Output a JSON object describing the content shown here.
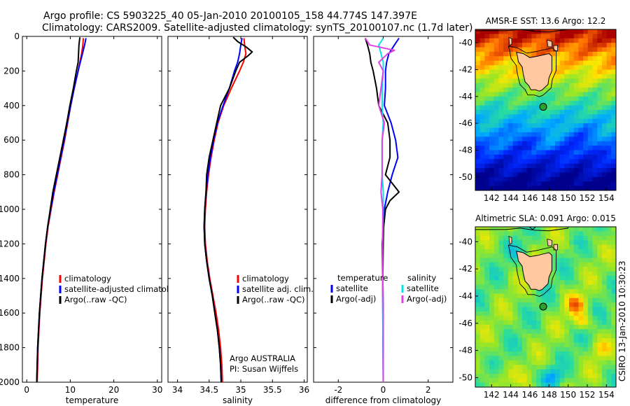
{
  "header": {
    "title_line1": "Argo profile: CS 5903225_40 05-Jan-2010 20100105_158 44.774S 147.397E",
    "title_line2": "Climatology: CARS2009. Satellite-adjusted climatology: synTS_20100107.nc (1.7d later)"
  },
  "side_label": "CSIRO 13-Jan-2010 10:30:23",
  "colors": {
    "red": "#ff0000",
    "blue": "#0000ff",
    "black": "#000000",
    "cyan": "#00e5e5",
    "magenta": "#e040e0",
    "land": "#ffc8a0",
    "float_marker": "#2ca02c"
  },
  "chart_data": [
    {
      "type": "line",
      "xlabel": "temperature",
      "ylim": [
        2000,
        0
      ],
      "xlim": [
        -1,
        31
      ],
      "xticks": [
        0,
        10,
        20,
        30
      ],
      "yticks": [
        0,
        200,
        400,
        600,
        800,
        1000,
        1200,
        1400,
        1600,
        1800,
        2000
      ],
      "ytick_labels": [
        "0",
        "200",
        "400",
        "600",
        "800",
        "1000",
        "1200",
        "1400",
        "1600",
        "1800",
        "2000"
      ],
      "legend": {
        "placement": "lower-center",
        "entries": [
          "climatology",
          "satellite-adjusted climatolog",
          "Argo(..raw -QC)"
        ]
      },
      "series": [
        {
          "name": "climatology",
          "color": "red",
          "depth": [
            10,
            50,
            100,
            150,
            200,
            300,
            400,
            500,
            600,
            700,
            800,
            900,
            1000,
            1100,
            1200,
            1300,
            1400,
            1500,
            1600,
            1700,
            1800,
            1900,
            2000
          ],
          "values": [
            13.0,
            12.9,
            12.6,
            12.2,
            11.8,
            10.9,
            10.1,
            9.4,
            8.7,
            7.9,
            7.1,
            6.3,
            5.6,
            4.9,
            4.4,
            4.0,
            3.6,
            3.3,
            3.0,
            2.8,
            2.6,
            2.5,
            2.4
          ]
        },
        {
          "name": "satellite-adjusted climatolog",
          "color": "blue",
          "depth": [
            10,
            50,
            100,
            150,
            200,
            300,
            400,
            500,
            600,
            700,
            800,
            900,
            1000,
            1100,
            1200,
            1300,
            1400,
            1500,
            1600,
            1700,
            1800,
            1900,
            2000
          ],
          "values": [
            13.6,
            13.3,
            12.8,
            12.3,
            11.8,
            10.9,
            10.1,
            9.3,
            8.6,
            7.8,
            7.0,
            6.2,
            5.5,
            4.8,
            4.3,
            3.9,
            3.5,
            3.2,
            2.9,
            2.7,
            2.5,
            2.4,
            2.3
          ]
        },
        {
          "name": "Argo(..raw -QC)",
          "color": "black",
          "depth": [
            5,
            50,
            100,
            150,
            200,
            300,
            400,
            500,
            600,
            700,
            800,
            900,
            1000,
            1100,
            1200,
            1300,
            1400,
            1500,
            1600,
            1700,
            1800,
            1900,
            2000
          ],
          "values": [
            12.2,
            12.0,
            11.9,
            11.8,
            11.4,
            10.7,
            9.9,
            9.2,
            8.4,
            7.6,
            6.8,
            6.0,
            5.4,
            4.8,
            4.3,
            3.9,
            3.5,
            3.2,
            2.9,
            2.7,
            2.5,
            2.4,
            2.3
          ]
        }
      ]
    },
    {
      "type": "line",
      "xlabel": "salinity",
      "ylim": [
        2000,
        0
      ],
      "xlim": [
        33.85,
        36.05
      ],
      "xticks": [
        34,
        34.5,
        35,
        35.5,
        36
      ],
      "xtick_labels": [
        "34",
        "34.5",
        "35",
        "35.5",
        "36"
      ],
      "legend": {
        "placement": "lower-right",
        "entries": [
          "climatology",
          "satellite adj. clim.",
          "Argo(..raw -QC)"
        ]
      },
      "annotation": [
        "Argo AUSTRALIA",
        "PI: Susan Wijffels"
      ],
      "series": [
        {
          "name": "climatology",
          "color": "red",
          "depth": [
            10,
            50,
            100,
            150,
            200,
            300,
            400,
            500,
            600,
            700,
            800,
            900,
            1000,
            1100,
            1200,
            1300,
            1400,
            1500,
            1600,
            1700,
            1800,
            1900,
            2000
          ],
          "values": [
            35.05,
            35.06,
            35.08,
            35.04,
            34.98,
            34.85,
            34.73,
            34.64,
            34.58,
            34.53,
            34.49,
            34.46,
            34.44,
            34.43,
            34.44,
            34.47,
            34.51,
            34.56,
            34.61,
            34.65,
            34.68,
            34.7,
            34.71
          ]
        },
        {
          "name": "satellite adj. clim.",
          "color": "blue",
          "depth": [
            10,
            50,
            100,
            150,
            200,
            300,
            400,
            500,
            600,
            700,
            800,
            900,
            1000,
            1100,
            1200,
            1300,
            1400,
            1500,
            1600,
            1700,
            1800,
            1900,
            2000
          ],
          "values": [
            35.02,
            35.0,
            34.98,
            34.95,
            34.9,
            34.82,
            34.72,
            34.63,
            34.57,
            34.52,
            34.48,
            34.45,
            34.43,
            34.42,
            34.43,
            34.46,
            34.5,
            34.55,
            34.59,
            34.63,
            34.66,
            34.68,
            34.69
          ]
        },
        {
          "name": "Argo(..raw -QC)",
          "color": "black",
          "depth": [
            5,
            30,
            60,
            90,
            110,
            150,
            200,
            300,
            400,
            500,
            600,
            700,
            800,
            900,
            1000,
            1100,
            1200,
            1300,
            1400,
            1500,
            1600,
            1700,
            1800,
            1900,
            2000
          ],
          "values": [
            34.88,
            34.95,
            35.08,
            35.18,
            35.12,
            34.98,
            34.92,
            34.82,
            34.68,
            34.62,
            34.56,
            34.5,
            34.46,
            34.45,
            34.43,
            34.42,
            34.43,
            34.46,
            34.5,
            34.55,
            34.59,
            34.63,
            34.66,
            34.68,
            34.69
          ]
        }
      ]
    },
    {
      "type": "line",
      "xlabel": "difference from climatology",
      "ylim": [
        2000,
        0
      ],
      "xlim": [
        -3.1,
        3.1
      ],
      "xticks": [
        -2,
        0,
        2
      ],
      "legend": {
        "placement": "lower-center",
        "groups": [
          {
            "heading": "temperature",
            "entries": [
              "satellite",
              "Argo(-adj)"
            ]
          },
          {
            "heading": "salinity",
            "entries": [
              "satellite",
              "Argo(-adj)"
            ]
          }
        ]
      },
      "series": [
        {
          "name": "temperature satellite",
          "color": "blue",
          "depth": [
            10,
            50,
            100,
            150,
            200,
            300,
            400,
            500,
            600,
            700,
            800,
            900,
            1000,
            1100,
            1200,
            1400,
            1600,
            1800,
            2000
          ],
          "values": [
            0.7,
            0.5,
            0.25,
            0.15,
            0.1,
            0.1,
            0.05,
            0.35,
            0.55,
            0.65,
            0.4,
            0.2,
            0.05,
            0.0,
            -0.05,
            -0.03,
            -0.02,
            -0.01,
            0.0
          ]
        },
        {
          "name": "temperature Argo(-adj)",
          "color": "black",
          "depth": [
            10,
            50,
            100,
            150,
            200,
            300,
            400,
            500,
            600,
            700,
            800,
            850,
            900,
            950,
            1000,
            1100,
            1200,
            1400,
            1600,
            1800,
            2000
          ],
          "values": [
            -0.8,
            -0.7,
            -0.6,
            -0.55,
            -0.45,
            -0.3,
            -0.2,
            0.2,
            0.3,
            0.3,
            0.1,
            0.4,
            0.7,
            0.3,
            0.1,
            0.02,
            0.0,
            -0.02,
            0.0,
            0.0,
            0.0
          ]
        },
        {
          "name": "salinity satellite",
          "color": "cyan",
          "depth": [
            10,
            50,
            100,
            150,
            200,
            300,
            400,
            500,
            600,
            700,
            800,
            900,
            1000,
            1200,
            1400,
            1600,
            1800,
            2000
          ],
          "values": [
            0.0,
            -0.2,
            -0.1,
            0.0,
            0.0,
            -0.05,
            -0.05,
            0.0,
            -0.05,
            -0.05,
            -0.05,
            0.0,
            0.0,
            -0.03,
            -0.03,
            -0.02,
            -0.01,
            0.0
          ]
        },
        {
          "name": "salinity Argo(-adj)",
          "color": "magenta",
          "depth": [
            10,
            50,
            80,
            100,
            150,
            200,
            300,
            400,
            500,
            600,
            700,
            800,
            900,
            1000,
            1200,
            1400,
            1600,
            1800,
            2000
          ],
          "values": [
            -0.8,
            -0.6,
            0.5,
            0.2,
            -0.2,
            0.0,
            -0.1,
            -0.2,
            0.05,
            -0.05,
            -0.05,
            -0.05,
            -0.1,
            -0.02,
            -0.03,
            -0.02,
            0.0,
            0.0,
            0.0
          ]
        }
      ]
    },
    {
      "type": "heatmap",
      "title": "AMSR-E SST: 13.6 Argo: 12.2",
      "xticks": [
        142,
        144,
        146,
        148,
        150,
        152,
        154
      ],
      "yticks": [
        -40,
        -42,
        -44,
        -46,
        -48,
        -50
      ],
      "xlim": [
        140.3,
        155.0
      ],
      "ylim": [
        -51.0,
        -39.0
      ],
      "float_position": {
        "lon": 147.397,
        "lat": -44.774
      }
    },
    {
      "type": "heatmap",
      "title": "Altimetric SLA: 0.091 Argo: 0.015",
      "xticks": [
        142,
        144,
        146,
        148,
        150,
        152,
        154
      ],
      "yticks": [
        -40,
        -42,
        -44,
        -46,
        -48,
        -50
      ],
      "xlim": [
        140.3,
        155.0
      ],
      "ylim": [
        -50.7,
        -38.9
      ],
      "float_position": {
        "lon": 147.397,
        "lat": -44.774
      }
    }
  ]
}
